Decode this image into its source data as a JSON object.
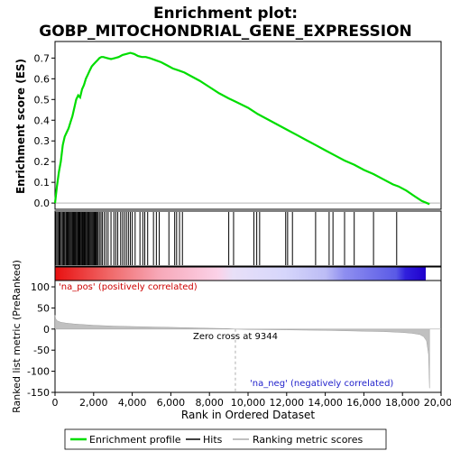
{
  "chart_data": {
    "type": "line",
    "title_line1": "Enrichment plot:",
    "title_line2": "GOBP_MITOCHONDRIAL_GENE_EXPRESSION",
    "enrichment_panel": {
      "ylabel": "Enrichment score (ES)",
      "ylim": [
        -0.03,
        0.78
      ],
      "yticks": [
        "0.0",
        "0.1",
        "0.2",
        "0.3",
        "0.4",
        "0.5",
        "0.6",
        "0.7"
      ],
      "ytick_values": [
        0.0,
        0.1,
        0.2,
        0.3,
        0.4,
        0.5,
        0.6,
        0.7
      ],
      "line_color": "#00dd00",
      "series": {
        "name": "Enrichment profile",
        "x": [
          0,
          100,
          200,
          300,
          400,
          500,
          600,
          700,
          800,
          900,
          1000,
          1100,
          1200,
          1300,
          1400,
          1500,
          1600,
          1700,
          1800,
          1900,
          2000,
          2100,
          2200,
          2300,
          2400,
          2500,
          2700,
          2900,
          3100,
          3300,
          3500,
          3700,
          3900,
          4100,
          4300,
          4500,
          4700,
          4900,
          5200,
          5500,
          5800,
          6100,
          6400,
          6700,
          7000,
          7500,
          8000,
          8500,
          9000,
          9344,
          10000,
          10500,
          11000,
          11500,
          12000,
          12500,
          13000,
          13500,
          14000,
          14500,
          15000,
          15500,
          16000,
          16500,
          17000,
          17500,
          17800,
          18200,
          18600,
          19000,
          19400
        ],
        "y": [
          0.0,
          0.08,
          0.15,
          0.2,
          0.28,
          0.32,
          0.34,
          0.36,
          0.39,
          0.42,
          0.46,
          0.5,
          0.52,
          0.51,
          0.55,
          0.57,
          0.6,
          0.62,
          0.64,
          0.66,
          0.67,
          0.68,
          0.69,
          0.7,
          0.705,
          0.705,
          0.7,
          0.695,
          0.7,
          0.705,
          0.715,
          0.72,
          0.725,
          0.72,
          0.71,
          0.705,
          0.705,
          0.7,
          0.69,
          0.68,
          0.665,
          0.65,
          0.64,
          0.63,
          0.615,
          0.59,
          0.56,
          0.53,
          0.505,
          0.49,
          0.46,
          0.43,
          0.405,
          0.38,
          0.355,
          0.33,
          0.305,
          0.28,
          0.255,
          0.23,
          0.205,
          0.185,
          0.16,
          0.14,
          0.115,
          0.09,
          0.08,
          0.06,
          0.035,
          0.01,
          -0.005
        ]
      }
    },
    "hits": {
      "name": "Hits",
      "positions": [
        30,
        90,
        150,
        210,
        260,
        320,
        380,
        430,
        470,
        520,
        580,
        630,
        680,
        730,
        780,
        830,
        880,
        920,
        960,
        1000,
        1040,
        1080,
        1130,
        1180,
        1220,
        1260,
        1300,
        1350,
        1400,
        1440,
        1480,
        1520,
        1560,
        1600,
        1650,
        1700,
        1740,
        1780,
        1830,
        1880,
        1930,
        1980,
        2030,
        2080,
        2130,
        2180,
        2230,
        2300,
        2380,
        2450,
        2550,
        2650,
        2750,
        2900,
        3050,
        3150,
        3250,
        3400,
        3500,
        3600,
        3700,
        3800,
        3900,
        4000,
        4150,
        4400,
        4550,
        4650,
        4800,
        5100,
        5250,
        5400,
        5900,
        6200,
        6300,
        6450,
        6600,
        9000,
        9250,
        10300,
        10450,
        10600,
        11950,
        12050,
        12300,
        13500,
        14200,
        14400,
        15000,
        15500,
        16500,
        17700
      ]
    },
    "ranked_bar": {
      "labels": [
        "'na_pos' (positively correlated)",
        "'na_neg' (negatively correlated)"
      ]
    },
    "metric_panel": {
      "ylabel": "Ranked list metric (PreRanked)",
      "ylim": [
        -150,
        115
      ],
      "yticks": [
        "100",
        "50",
        "0",
        "-50",
        "-100",
        "-150"
      ],
      "ytick_values": [
        100,
        50,
        0,
        -50,
        -100,
        -150
      ],
      "fill_color": "#c0c0c0",
      "series": {
        "name": "Ranking metric scores",
        "x": [
          0,
          30,
          100,
          300,
          600,
          1000,
          2000,
          3000,
          4000,
          5000,
          6000,
          7000,
          8000,
          9000,
          9344,
          10000,
          11000,
          12000,
          13000,
          14000,
          15000,
          16000,
          17000,
          18000,
          18500,
          18900,
          19100,
          19250,
          19350,
          19400
        ],
        "y": [
          33,
          25,
          20,
          16,
          14,
          12,
          9,
          7,
          6,
          5,
          4,
          3,
          2,
          1,
          0,
          -1,
          -1.5,
          -2,
          -2.5,
          -3,
          -4,
          -5,
          -6,
          -8,
          -10,
          -13,
          -18,
          -28,
          -60,
          -140
        ]
      },
      "annotations": {
        "pos": "'na_pos' (positively correlated)",
        "neg": "'na_neg' (negatively correlated)",
        "zero_cross": "Zero cross at 9344"
      },
      "zero_cross_x": 9344
    },
    "xaxis": {
      "xlabel": "Rank in Ordered Dataset",
      "xlim": [
        0,
        20000
      ],
      "xticks": [
        "0",
        "2,000",
        "4,000",
        "6,000",
        "8,000",
        "10,000",
        "12,000",
        "14,000",
        "16,000",
        "18,000",
        "20,000"
      ],
      "xtick_values": [
        0,
        2000,
        4000,
        6000,
        8000,
        10000,
        12000,
        14000,
        16000,
        18000,
        20000
      ]
    },
    "legend": {
      "items": [
        "Enrichment profile",
        "Hits",
        "Ranking metric scores"
      ],
      "placement": "bottom"
    }
  }
}
